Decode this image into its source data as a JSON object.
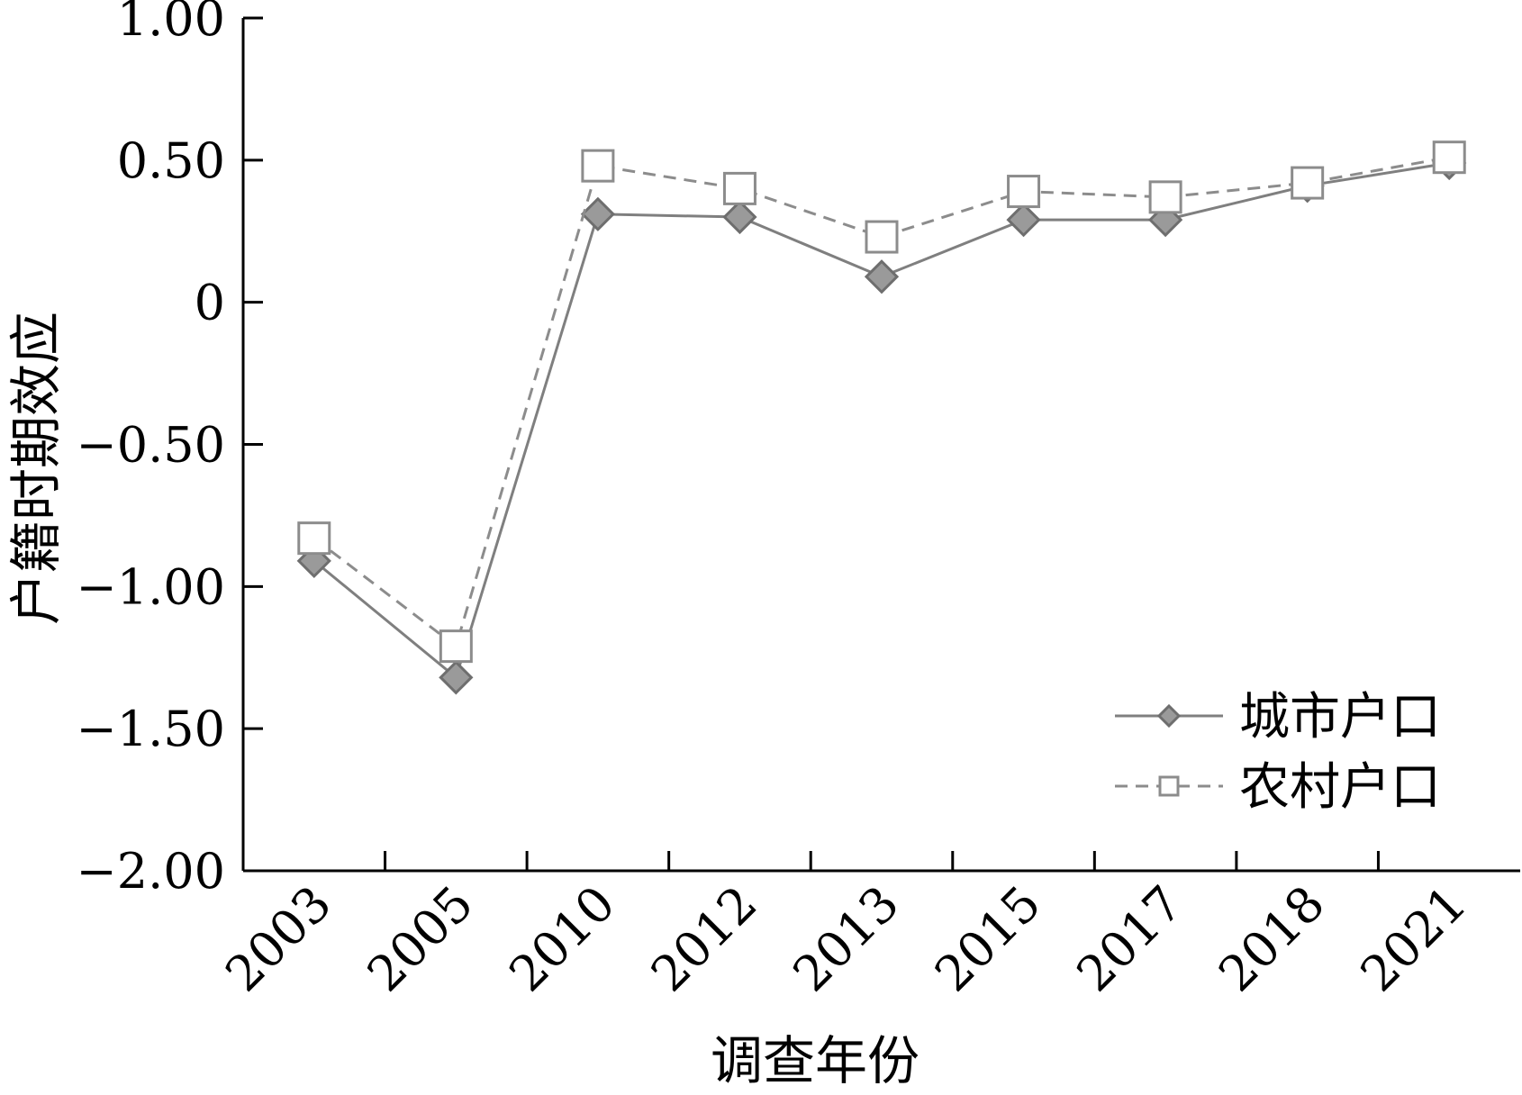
{
  "chart_data": {
    "type": "line",
    "title": "",
    "xlabel": "调查年份",
    "ylabel": "户籍时期效应",
    "categories": [
      "2003",
      "2005",
      "2010",
      "2012",
      "2013",
      "2015",
      "2017",
      "2018",
      "2021"
    ],
    "ylim": [
      -2.0,
      1.0
    ],
    "yticks": [
      "1.00",
      "0.50",
      "0",
      "−0.50",
      "−1.00",
      "−1.50",
      "−2.00"
    ],
    "ytick_values": [
      1.0,
      0.5,
      0,
      -0.5,
      -1.0,
      -1.5,
      -2.0
    ],
    "grid": false,
    "legend_position": "bottom-right",
    "series": [
      {
        "name": "城市户口",
        "marker": "diamond-filled",
        "line_style": "solid",
        "color": "#7f7f7f",
        "marker_fill": "#9a9a9a",
        "values": [
          -0.91,
          -1.32,
          0.31,
          0.3,
          0.09,
          0.29,
          0.29,
          0.41,
          0.49
        ]
      },
      {
        "name": "农村户口",
        "marker": "square-open",
        "line_style": "dashed",
        "color": "#8c8c8c",
        "marker_fill": "#ffffff",
        "values": [
          -0.83,
          -1.21,
          0.48,
          0.4,
          0.23,
          0.39,
          0.37,
          0.42,
          0.51
        ]
      }
    ]
  }
}
